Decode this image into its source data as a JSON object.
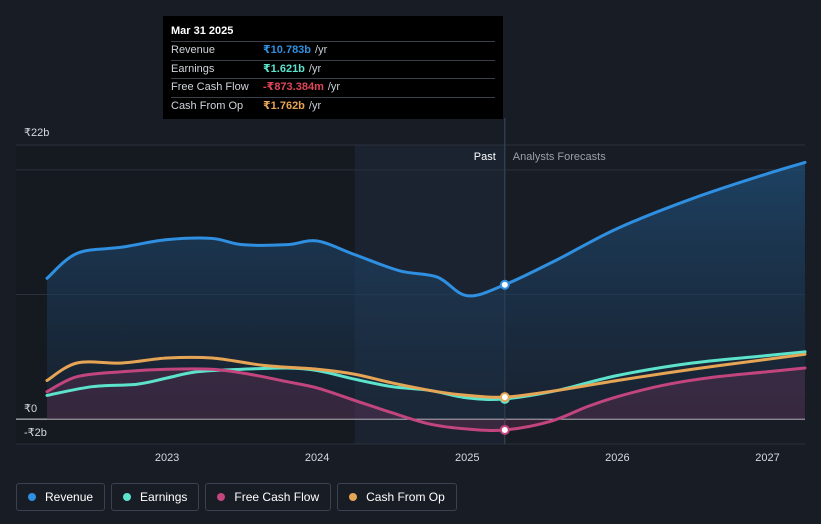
{
  "chart_data": {
    "type": "area",
    "currency": "₹",
    "unit": "b",
    "ylim": [
      -2,
      22
    ],
    "y_ticks": [
      {
        "value": 22,
        "label": "₹22b"
      },
      {
        "value": 0,
        "label": "₹0"
      },
      {
        "value": -2,
        "label": "-₹2b"
      }
    ],
    "xlim": [
      2022.2,
      2027.25
    ],
    "x_ticks": [
      {
        "value": 2023,
        "label": "2023"
      },
      {
        "value": 2024,
        "label": "2024"
      },
      {
        "value": 2025,
        "label": "2025"
      },
      {
        "value": 2026,
        "label": "2026"
      },
      {
        "value": 2027,
        "label": "2027"
      }
    ],
    "past_start": 2024.25,
    "divider": 2025.25,
    "past_label": "Past",
    "forecast_label": "Analysts Forecasts",
    "series": [
      {
        "name": "Revenue",
        "color": "#2f8fe0",
        "fill": true,
        "points": [
          [
            2022.2,
            11.3
          ],
          [
            2022.4,
            13.3
          ],
          [
            2022.7,
            13.8
          ],
          [
            2023.0,
            14.4
          ],
          [
            2023.3,
            14.5
          ],
          [
            2023.5,
            14.0
          ],
          [
            2023.8,
            14.0
          ],
          [
            2024.0,
            14.3
          ],
          [
            2024.25,
            13.2
          ],
          [
            2024.55,
            11.9
          ],
          [
            2024.8,
            11.4
          ],
          [
            2025.0,
            9.9
          ],
          [
            2025.25,
            10.783
          ],
          [
            2025.6,
            12.8
          ],
          [
            2026.0,
            15.3
          ],
          [
            2026.5,
            17.7
          ],
          [
            2027.0,
            19.7
          ],
          [
            2027.25,
            20.6
          ]
        ]
      },
      {
        "name": "Earnings",
        "color": "#5de3cc",
        "fill": false,
        "points": [
          [
            2022.2,
            1.9
          ],
          [
            2022.5,
            2.6
          ],
          [
            2022.8,
            2.8
          ],
          [
            2023.0,
            3.3
          ],
          [
            2023.2,
            3.8
          ],
          [
            2023.5,
            4.0
          ],
          [
            2023.8,
            4.1
          ],
          [
            2024.0,
            3.9
          ],
          [
            2024.25,
            3.2
          ],
          [
            2024.5,
            2.6
          ],
          [
            2024.75,
            2.3
          ],
          [
            2025.0,
            1.7
          ],
          [
            2025.25,
            1.621
          ],
          [
            2025.6,
            2.3
          ],
          [
            2026.0,
            3.5
          ],
          [
            2026.5,
            4.5
          ],
          [
            2027.0,
            5.1
          ],
          [
            2027.25,
            5.4
          ]
        ]
      },
      {
        "name": "Free Cash Flow",
        "color": "#c2457e",
        "fill": true,
        "points": [
          [
            2022.2,
            2.2
          ],
          [
            2022.4,
            3.4
          ],
          [
            2022.7,
            3.8
          ],
          [
            2023.0,
            4.0
          ],
          [
            2023.3,
            4.0
          ],
          [
            2023.55,
            3.6
          ],
          [
            2023.8,
            3.0
          ],
          [
            2024.0,
            2.5
          ],
          [
            2024.25,
            1.5
          ],
          [
            2024.5,
            0.5
          ],
          [
            2024.75,
            -0.4
          ],
          [
            2025.0,
            -0.8
          ],
          [
            2025.25,
            -0.873
          ],
          [
            2025.55,
            -0.2
          ],
          [
            2025.8,
            1.0
          ],
          [
            2026.0,
            1.8
          ],
          [
            2026.3,
            2.7
          ],
          [
            2026.6,
            3.3
          ],
          [
            2027.0,
            3.8
          ],
          [
            2027.25,
            4.1
          ]
        ]
      },
      {
        "name": "Cash From Op",
        "color": "#e6a455",
        "fill": false,
        "points": [
          [
            2022.2,
            3.1
          ],
          [
            2022.4,
            4.5
          ],
          [
            2022.7,
            4.5
          ],
          [
            2023.0,
            4.9
          ],
          [
            2023.3,
            4.9
          ],
          [
            2023.65,
            4.3
          ],
          [
            2024.0,
            4.0
          ],
          [
            2024.25,
            3.6
          ],
          [
            2024.5,
            2.9
          ],
          [
            2024.8,
            2.2
          ],
          [
            2025.0,
            1.9
          ],
          [
            2025.25,
            1.762
          ],
          [
            2025.6,
            2.3
          ],
          [
            2026.0,
            3.1
          ],
          [
            2026.5,
            4.0
          ],
          [
            2027.0,
            4.8
          ],
          [
            2027.25,
            5.2
          ]
        ]
      }
    ]
  },
  "tooltip": {
    "date": "Mar 31 2025",
    "rows": [
      {
        "label": "Revenue",
        "value": "₹10.783b",
        "unit": "/yr",
        "color": "#2f8fe0"
      },
      {
        "label": "Earnings",
        "value": "₹1.621b",
        "unit": "/yr",
        "color": "#5de3cc"
      },
      {
        "label": "Free Cash Flow",
        "value": "-₹873.384m",
        "unit": "/yr",
        "color": "#e0455a"
      },
      {
        "label": "Cash From Op",
        "value": "₹1.762b",
        "unit": "/yr",
        "color": "#e6a455"
      }
    ]
  },
  "legend": [
    {
      "label": "Revenue",
      "color": "#2f8fe0"
    },
    {
      "label": "Earnings",
      "color": "#5de3cc"
    },
    {
      "label": "Free Cash Flow",
      "color": "#c2457e"
    },
    {
      "label": "Cash From Op",
      "color": "#e6a455"
    }
  ]
}
